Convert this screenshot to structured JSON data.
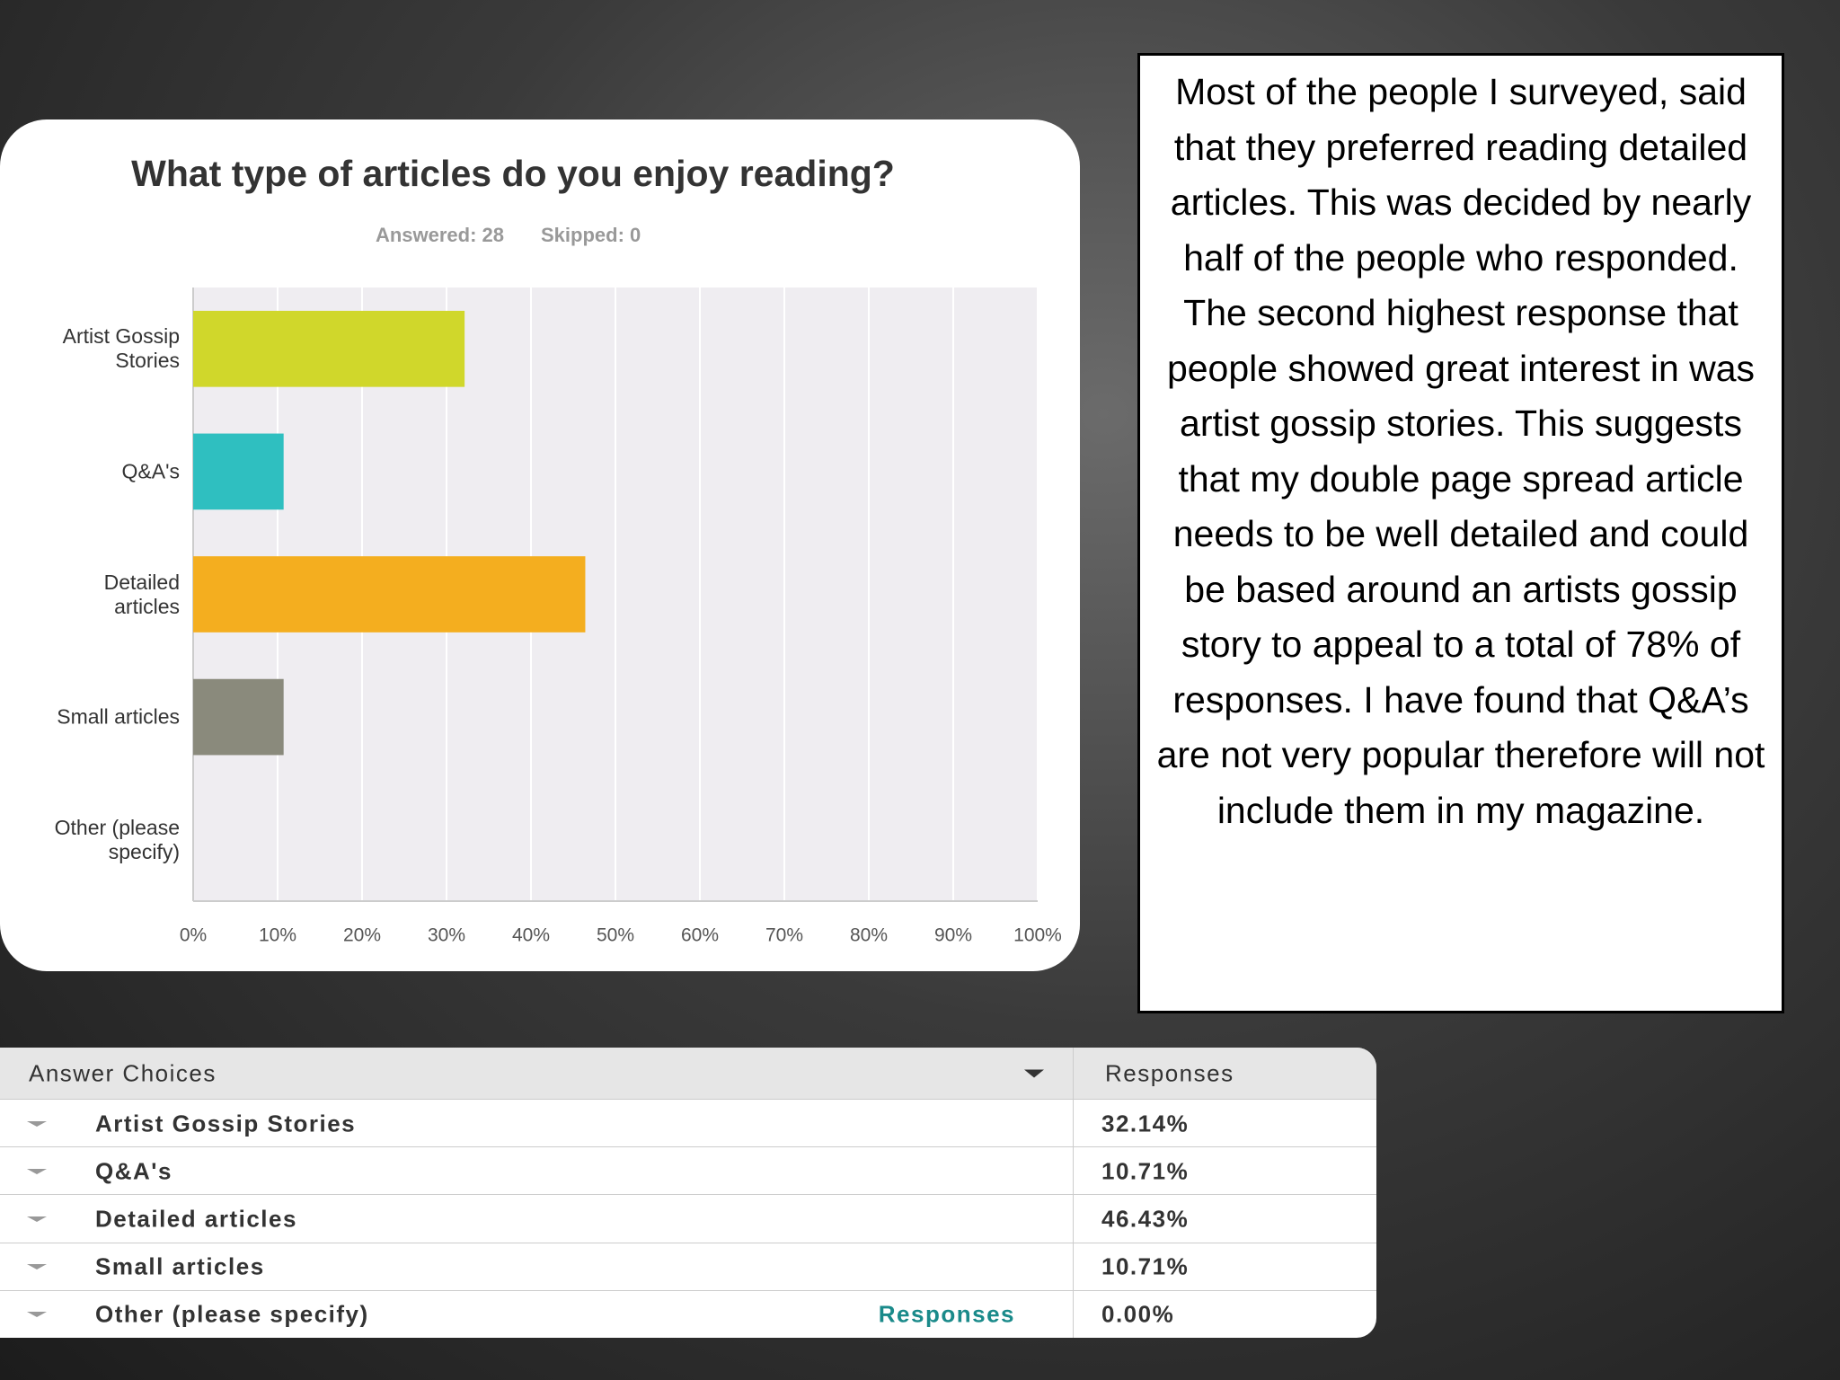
{
  "chart_data": {
    "type": "bar",
    "orientation": "horizontal",
    "title": "What type of articles do you enjoy reading?",
    "answered": "Answered: 28",
    "skipped": "Skipped: 0",
    "categories": [
      "Artist Gossip Stories",
      "Q&A's",
      "Detailed articles",
      "Small articles",
      "Other (please specify)"
    ],
    "values": [
      32.14,
      10.71,
      46.43,
      10.71,
      0
    ],
    "colors": [
      "#d0d72b",
      "#2fbfc0",
      "#f4ae1f",
      "#8a8a7c",
      "#cccccc"
    ],
    "xlim": [
      0,
      100
    ],
    "xticks": [
      {
        "value": 0,
        "label": "0%"
      },
      {
        "value": 10,
        "label": "10%"
      },
      {
        "value": 20,
        "label": "20%"
      },
      {
        "value": 30,
        "label": "30%"
      },
      {
        "value": 40,
        "label": "40%"
      },
      {
        "value": 50,
        "label": "50%"
      },
      {
        "value": 60,
        "label": "60%"
      },
      {
        "value": 70,
        "label": "70%"
      },
      {
        "value": 80,
        "label": "80%"
      },
      {
        "value": 90,
        "label": "90%"
      },
      {
        "value": 100,
        "label": "100%"
      }
    ],
    "grid": true
  },
  "table": {
    "header": [
      "Answer Choices",
      "Responses"
    ],
    "rows": [
      [
        "Artist Gossip Stories",
        "32.14%"
      ],
      [
        "Q&A's",
        "10.71%"
      ],
      [
        "Detailed articles",
        "46.43%"
      ],
      [
        "Small articles",
        "10.71%"
      ],
      [
        "Other (please specify)",
        "0.00%"
      ]
    ],
    "link": "Responses"
  },
  "note": "Most of the people I surveyed, said that they preferred reading detailed articles. This was decided by nearly half of the people who responded. The second highest response that people showed great interest in was artist gossip stories. This suggests that my double page spread article needs to be well detailed and could be based around an artists gossip story to appeal to a total of 78% of responses. I have found that Q&A’s are not very popular therefore will not include them in my magazine."
}
